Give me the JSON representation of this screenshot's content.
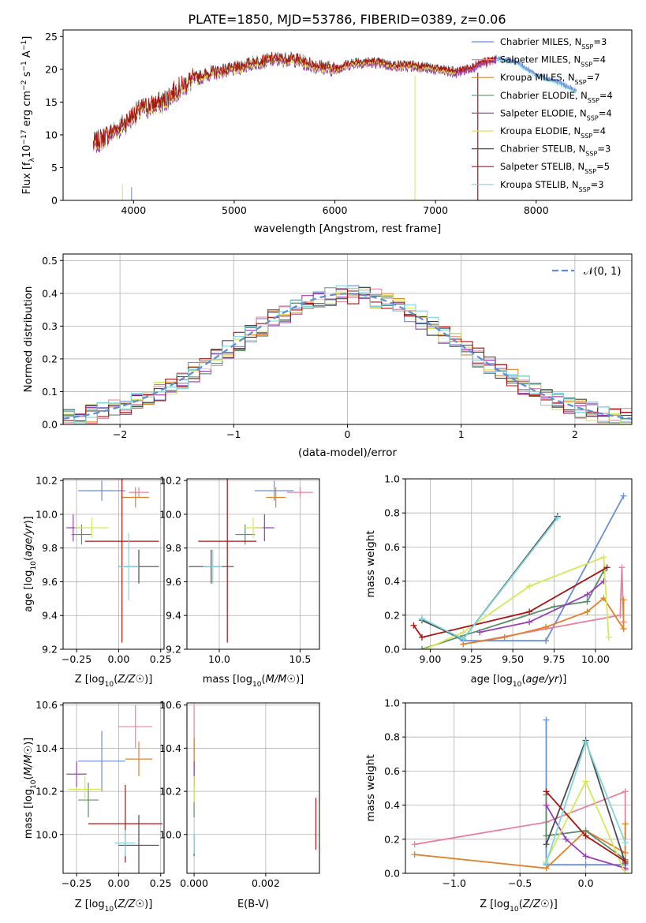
{
  "figure_title": "PLATE=1850, MJD=53786, FIBERID=0389, z=0.06",
  "colors": {
    "chabrier_miles": "#6a8ed8",
    "salpeter_miles": "#e7839e",
    "kroupa_miles": "#e0822a",
    "chabrier_elodie": "#5c8c6c",
    "salpeter_elodie": "#9b3fb5",
    "kroupa_elodie": "#d4ea55",
    "chabrier_stelib": "#4a4a4a",
    "salpeter_stelib": "#a81515",
    "kroupa_stelib": "#7fd6dc",
    "normal": "#5b8bd9",
    "grid": "#b0b0b0"
  },
  "chart_data": [
    {
      "id": "spectrum",
      "type": "line",
      "xlabel": "wavelength [Angstrom, rest frame]",
      "ylabel_parts": [
        "Flux [f",
        "λ",
        "10",
        "−17",
        " erg cm",
        "−2",
        " s",
        "−1",
        " A",
        "−1",
        "]"
      ],
      "xlim": [
        3300,
        8950
      ],
      "ylim": [
        0,
        26
      ],
      "xticks": [
        4000,
        5000,
        6000,
        7000,
        8000
      ],
      "yticks": [
        0,
        5,
        10,
        15,
        20,
        25
      ],
      "legend_location": "upper right",
      "series": [
        {
          "name": "Chabrier MILES",
          "nssp": "3"
        },
        {
          "name": "Salpeter MILES",
          "nssp": "4"
        },
        {
          "name": "Kroupa MILES",
          "nssp": "7"
        },
        {
          "name": "Chabrier ELODIE",
          "nssp": "4"
        },
        {
          "name": "Salpeter ELODIE",
          "nssp": "4"
        },
        {
          "name": "Kroupa ELODIE",
          "nssp": "4"
        },
        {
          "name": "Chabrier STELIB",
          "nssp": "3"
        },
        {
          "name": "Salpeter STELIB",
          "nssp": "5"
        },
        {
          "name": "Kroupa STELIB",
          "nssp": "3"
        }
      ],
      "continuum": {
        "x": [
          3600,
          3700,
          3800,
          3900,
          4000,
          4100,
          4200,
          4300,
          4400,
          4500,
          4600,
          4800,
          5000,
          5200,
          5400,
          5600,
          5800,
          6000,
          6200,
          6400,
          6600,
          6800,
          7000,
          7200,
          7400,
          7600,
          7800,
          8000,
          8200,
          8400
        ],
        "y": [
          8.5,
          9.5,
          10.5,
          11.5,
          13.0,
          14.0,
          14.5,
          15.0,
          16.5,
          17.5,
          18.5,
          19.5,
          20.0,
          21.0,
          21.5,
          21.5,
          20.5,
          20.0,
          21.0,
          21.0,
          20.5,
          20.5,
          20.0,
          19.5,
          20.5,
          21.5,
          21.0,
          19.0,
          18.0,
          16.5
        ]
      }
    },
    {
      "id": "residuals",
      "type": "histogram",
      "xlabel": "(data-model)/error",
      "ylabel": "Normed distribution",
      "xlim": [
        -2.5,
        2.5
      ],
      "ylim": [
        0,
        0.52
      ],
      "xticks": [
        -2,
        -1,
        0,
        1,
        2
      ],
      "yticks": [
        0.0,
        0.1,
        0.2,
        0.3,
        0.4,
        0.5
      ],
      "legend": "𝒩(0, 1)",
      "legend_location": "upper right",
      "bin_width": 0.1
    },
    {
      "id": "age_vs_Z",
      "type": "scatter",
      "xlabel": "Z [log10(Z/Z☉)]",
      "ylabel": "age  [log10(age/yr)]",
      "xlim": [
        -0.33,
        0.27
      ],
      "ylim": [
        9.2,
        10.21
      ],
      "xticks": [
        -0.25,
        0.0,
        0.25
      ],
      "yticks": [
        9.2,
        9.4,
        9.6,
        9.8,
        10.0,
        10.2
      ],
      "points": [
        {
          "series": "Chabrier MILES",
          "x": -0.1,
          "y": 10.14,
          "xerr": 0.14,
          "yerr": 0.06
        },
        {
          "series": "Salpeter MILES",
          "x": 0.12,
          "y": 10.13,
          "xerr": 0.06,
          "yerr": 0.03
        },
        {
          "series": "Kroupa MILES",
          "x": 0.1,
          "y": 10.1,
          "xerr": 0.08,
          "yerr": 0.06
        },
        {
          "series": "Chabrier ELODIE",
          "x": -0.22,
          "y": 9.88,
          "xerr": 0.06,
          "yerr": 0.06
        },
        {
          "series": "Salpeter ELODIE",
          "x": -0.27,
          "y": 9.92,
          "xerr": 0.04,
          "yerr": 0.08
        },
        {
          "series": "Kroupa ELODIE",
          "x": -0.16,
          "y": 9.92,
          "xerr": 0.1,
          "yerr": 0.06
        },
        {
          "series": "Chabrier STELIB",
          "x": 0.12,
          "y": 9.69,
          "xerr": 0.12,
          "yerr": 0.1
        },
        {
          "series": "Salpeter STELIB",
          "x": 0.02,
          "y": 9.84,
          "xerr": 0.22,
          "yerr": 0.6
        },
        {
          "series": "Kroupa STELIB",
          "x": 0.06,
          "y": 9.69,
          "xerr": 0.06,
          "yerr": 0.2
        }
      ]
    },
    {
      "id": "age_vs_mass",
      "type": "scatter",
      "xlabel": "mass [log10(M/M☉)]",
      "ylabel": "",
      "xlim": [
        9.8,
        10.62
      ],
      "ylim": [
        9.2,
        10.21
      ],
      "xticks": [
        10.0,
        10.5
      ],
      "yticks": [
        9.2,
        9.4,
        9.6,
        9.8,
        10.0,
        10.2
      ],
      "points": [
        {
          "series": "Chabrier MILES",
          "x": 10.34,
          "y": 10.14,
          "xerr": 0.12,
          "yerr": 0.06
        },
        {
          "series": "Salpeter MILES",
          "x": 10.5,
          "y": 10.13,
          "xerr": 0.08,
          "yerr": 0.03
        },
        {
          "series": "Kroupa MILES",
          "x": 10.35,
          "y": 10.1,
          "xerr": 0.06,
          "yerr": 0.06
        },
        {
          "series": "Chabrier ELODIE",
          "x": 10.16,
          "y": 9.88,
          "xerr": 0.06,
          "yerr": 0.06
        },
        {
          "series": "Salpeter ELODIE",
          "x": 10.28,
          "y": 9.92,
          "xerr": 0.06,
          "yerr": 0.08
        },
        {
          "series": "Kroupa ELODIE",
          "x": 10.21,
          "y": 9.92,
          "xerr": 0.06,
          "yerr": 0.06
        },
        {
          "series": "Chabrier STELIB",
          "x": 9.95,
          "y": 9.69,
          "xerr": 0.14,
          "yerr": 0.1
        },
        {
          "series": "Salpeter STELIB",
          "x": 10.05,
          "y": 9.84,
          "xerr": 0.18,
          "yerr": 0.6
        },
        {
          "series": "Kroupa STELIB",
          "x": 9.96,
          "y": 9.69,
          "xerr": 0.06,
          "yerr": 0.1
        }
      ]
    },
    {
      "id": "weight_vs_age",
      "type": "line",
      "xlabel": "age  [log10(age/yr)]",
      "ylabel": "mass weight",
      "xlim": [
        8.85,
        10.22
      ],
      "ylim": [
        0,
        1.0
      ],
      "xticks": [
        9.0,
        9.25,
        9.5,
        9.75,
        10.0
      ],
      "yticks": [
        0.0,
        0.2,
        0.4,
        0.6,
        0.8,
        1.0
      ],
      "series": [
        {
          "name": "Chabrier MILES",
          "x": [
            8.95,
            9.2,
            9.7,
            10.17
          ],
          "y": [
            0.18,
            0.05,
            0.05,
            0.9
          ]
        },
        {
          "name": "Salpeter MILES",
          "x": [
            9.2,
            10.15,
            10.16,
            10.17
          ],
          "y": [
            0.03,
            0.2,
            0.48,
            0.16
          ]
        },
        {
          "name": "Kroupa MILES",
          "x": [
            9.2,
            9.45,
            9.7,
            9.95,
            10.05,
            10.17,
            10.17
          ],
          "y": [
            0.03,
            0.07,
            0.13,
            0.22,
            0.3,
            0.12,
            0.29
          ]
        },
        {
          "name": "Chabrier ELODIE",
          "x": [
            8.95,
            9.2,
            9.75,
            9.95,
            10.05
          ],
          "y": [
            0.0,
            0.08,
            0.25,
            0.28,
            0.46
          ]
        },
        {
          "name": "Salpeter ELODIE",
          "x": [
            9.3,
            9.6,
            9.95,
            10.05
          ],
          "y": [
            0.1,
            0.16,
            0.32,
            0.4
          ]
        },
        {
          "name": "Kroupa ELODIE",
          "x": [
            8.97,
            9.2,
            9.6,
            10.05,
            10.08
          ],
          "y": [
            0.0,
            0.1,
            0.37,
            0.54,
            0.07
          ]
        },
        {
          "name": "Chabrier STELIB",
          "x": [
            8.95,
            9.2,
            9.77
          ],
          "y": [
            0.17,
            0.06,
            0.78
          ]
        },
        {
          "name": "Salpeter STELIB",
          "x": [
            8.9,
            8.95,
            9.6,
            10.07
          ],
          "y": [
            0.14,
            0.07,
            0.22,
            0.48
          ]
        },
        {
          "name": "Kroupa STELIB",
          "x": [
            8.95,
            9.2,
            9.77
          ],
          "y": [
            0.18,
            0.06,
            0.77
          ]
        }
      ]
    },
    {
      "id": "mass_vs_Z",
      "type": "scatter",
      "xlabel": "Z [log10(Z/Z☉)]",
      "ylabel": "mass [log10(M/M☉)]",
      "xlim": [
        -0.33,
        0.27
      ],
      "ylim": [
        9.82,
        10.61
      ],
      "xticks": [
        -0.25,
        0.0,
        0.25
      ],
      "yticks": [
        10.0,
        10.2,
        10.4,
        10.6
      ],
      "points": [
        {
          "series": "Chabrier MILES",
          "x": -0.1,
          "y": 10.34,
          "xerr": 0.14,
          "yerr": 0.14
        },
        {
          "series": "Salpeter MILES",
          "x": 0.1,
          "y": 10.5,
          "xerr": 0.1,
          "yerr": 0.1
        },
        {
          "series": "Kroupa MILES",
          "x": 0.12,
          "y": 10.35,
          "xerr": 0.08,
          "yerr": 0.08
        },
        {
          "series": "Chabrier ELODIE",
          "x": -0.18,
          "y": 10.16,
          "xerr": 0.06,
          "yerr": 0.08
        },
        {
          "series": "Salpeter ELODIE",
          "x": -0.25,
          "y": 10.28,
          "xerr": 0.06,
          "yerr": 0.06
        },
        {
          "series": "Kroupa ELODIE",
          "x": -0.2,
          "y": 10.21,
          "xerr": 0.1,
          "yerr": 0.06
        },
        {
          "series": "Chabrier STELIB",
          "x": 0.12,
          "y": 9.95,
          "xerr": 0.12,
          "yerr": 0.14
        },
        {
          "series": "Salpeter STELIB",
          "x": 0.04,
          "y": 10.05,
          "xerr": 0.22,
          "yerr": 0.18
        },
        {
          "series": "Kroupa STELIB",
          "x": 0.04,
          "y": 9.96,
          "xerr": 0.06,
          "yerr": 0.06
        }
      ]
    },
    {
      "id": "mass_vs_ebv",
      "type": "scatter",
      "xlabel": "E(B-V)",
      "ylabel": "",
      "xlim": [
        -0.0002,
        0.0035
      ],
      "ylim": [
        9.82,
        10.61
      ],
      "xticks": [
        0.0,
        0.002
      ],
      "yticks": [
        10.0,
        10.2,
        10.4,
        10.6
      ],
      "points": [
        {
          "series": "Chabrier MILES",
          "x": 0.0,
          "y": 10.34,
          "xerr": 0,
          "yerr": 0.1
        },
        {
          "series": "Salpeter MILES",
          "x": 0.0,
          "y": 10.5,
          "xerr": 0,
          "yerr": 0.1
        },
        {
          "series": "Kroupa MILES",
          "x": 0.0,
          "y": 10.35,
          "xerr": 0,
          "yerr": 0.1
        },
        {
          "series": "Chabrier ELODIE",
          "x": 0.0,
          "y": 10.16,
          "xerr": 0,
          "yerr": 0.08
        },
        {
          "series": "Salpeter ELODIE",
          "x": 0.0,
          "y": 10.28,
          "xerr": 0,
          "yerr": 0.06
        },
        {
          "series": "Kroupa ELODIE",
          "x": 0.0,
          "y": 10.21,
          "xerr": 0,
          "yerr": 0.06
        },
        {
          "series": "Chabrier STELIB",
          "x": 0.0,
          "y": 9.95,
          "xerr": 0,
          "yerr": 0.05
        },
        {
          "series": "Salpeter STELIB",
          "x": 0.0034,
          "y": 10.05,
          "xerr": 0,
          "yerr": 0.12
        },
        {
          "series": "Kroupa STELIB",
          "x": 0.0,
          "y": 9.96,
          "xerr": 0,
          "yerr": 0.05
        }
      ]
    },
    {
      "id": "weight_vs_Z",
      "type": "line",
      "xlabel": "Z [log10(Z/Z☉)]",
      "ylabel": "mass weight",
      "xlim": [
        -1.37,
        0.35
      ],
      "ylim": [
        0,
        1.0
      ],
      "xticks": [
        -1.0,
        -0.5,
        0.0
      ],
      "yticks": [
        0.0,
        0.2,
        0.4,
        0.6,
        0.8,
        1.0
      ],
      "series": [
        {
          "name": "Chabrier MILES",
          "x": [
            -0.3,
            -0.3,
            0.0,
            0.3
          ],
          "y": [
            0.9,
            0.05,
            0.05,
            0.05
          ]
        },
        {
          "name": "Salpeter MILES",
          "x": [
            -1.3,
            -0.3,
            0.3,
            0.3
          ],
          "y": [
            0.17,
            0.3,
            0.48,
            0.02
          ]
        },
        {
          "name": "Kroupa MILES",
          "x": [
            -1.3,
            -0.3,
            0.0,
            0.3,
            0.3
          ],
          "y": [
            0.11,
            0.03,
            0.25,
            0.12,
            0.29
          ]
        },
        {
          "name": "Chabrier ELODIE",
          "x": [
            -0.3,
            -0.3,
            0.0,
            0.3
          ],
          "y": [
            0.46,
            0.22,
            0.25,
            0.08
          ]
        },
        {
          "name": "Salpeter ELODIE",
          "x": [
            -0.3,
            -0.15,
            0.0,
            0.3
          ],
          "y": [
            0.4,
            0.2,
            0.1,
            0.03
          ]
        },
        {
          "name": "Kroupa ELODIE",
          "x": [
            -0.3,
            0.0,
            0.3
          ],
          "y": [
            0.07,
            0.54,
            0.0
          ]
        },
        {
          "name": "Chabrier STELIB",
          "x": [
            -0.3,
            0.0,
            0.3
          ],
          "y": [
            0.17,
            0.78,
            0.06
          ]
        },
        {
          "name": "Salpeter STELIB",
          "x": [
            -0.3,
            0.0,
            0.3
          ],
          "y": [
            0.48,
            0.22,
            0.07
          ]
        },
        {
          "name": "Kroupa STELIB",
          "x": [
            -0.3,
            0.0,
            0.3
          ],
          "y": [
            0.06,
            0.77,
            0.18
          ]
        }
      ]
    }
  ]
}
